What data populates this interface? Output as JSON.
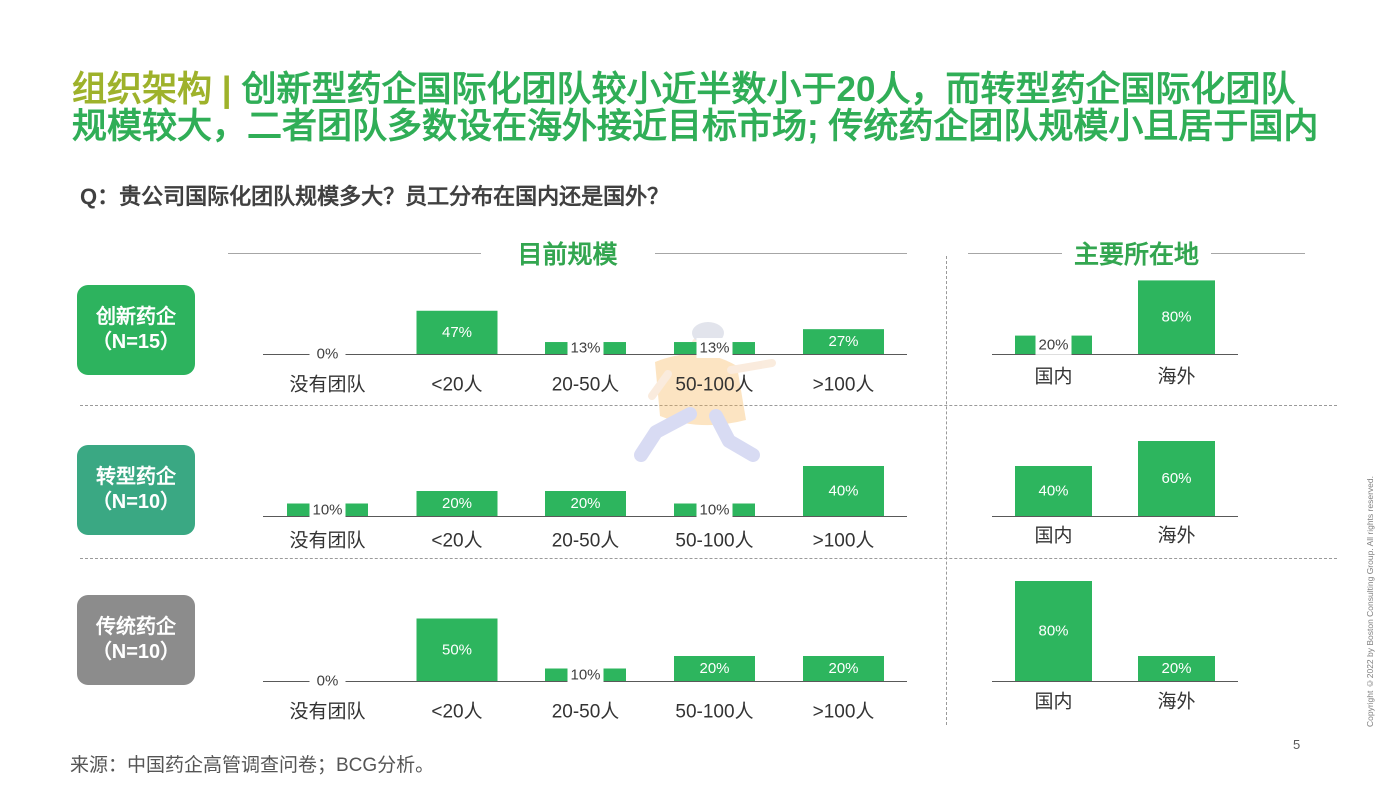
{
  "title": {
    "prefix": "组织架构 |",
    "line1": "创新型药企国际化团队较小近半数小于20人，而转型药企国际化团队",
    "line2": "规模较大，二者团队多数设在海外接近目标市场; 传统药企团队规模小且居于国内"
  },
  "question": "Q：贵公司国际化团队规模多大？员工分布在国内还是国外？",
  "headers": {
    "size": "目前规模",
    "location": "主要所在地"
  },
  "rows": [
    {
      "label": "创新药企",
      "n": "（N=15）",
      "color": "#2DB35E"
    },
    {
      "label": "转型药企",
      "n": "（N=10）",
      "color": "#3AA883"
    },
    {
      "label": "传统药企",
      "n": "（N=10）",
      "color": "#8C8C8C"
    }
  ],
  "chart_data": [
    {
      "type": "bar",
      "grid": false,
      "categories": [
        "没有团队",
        "<20人",
        "20-50人",
        "50-100人",
        ">100人"
      ],
      "values": [
        0,
        47,
        13,
        13,
        27
      ],
      "data_labels": [
        "0%",
        "47%",
        "13%",
        "13%",
        "27%"
      ]
    },
    {
      "type": "bar",
      "grid": false,
      "categories": [
        "国内",
        "海外"
      ],
      "values": [
        20,
        80
      ],
      "data_labels": [
        "20%",
        "80%"
      ]
    },
    {
      "type": "bar",
      "grid": false,
      "categories": [
        "没有团队",
        "<20人",
        "20-50人",
        "50-100人",
        ">100人"
      ],
      "values": [
        10,
        20,
        20,
        10,
        40
      ],
      "data_labels": [
        "10%",
        "20%",
        "20%",
        "10%",
        "40%"
      ]
    },
    {
      "type": "bar",
      "grid": false,
      "categories": [
        "国内",
        "海外"
      ],
      "values": [
        40,
        60
      ],
      "data_labels": [
        "40%",
        "60%"
      ]
    },
    {
      "type": "bar",
      "grid": false,
      "categories": [
        "没有团队",
        "<20人",
        "20-50人",
        "50-100人",
        ">100人"
      ],
      "values": [
        0,
        50,
        10,
        20,
        20
      ],
      "data_labels": [
        "0%",
        "50%",
        "10%",
        "20%",
        "20%"
      ]
    },
    {
      "type": "bar",
      "grid": false,
      "categories": [
        "国内",
        "海外"
      ],
      "values": [
        80,
        20
      ],
      "data_labels": [
        "80%",
        "20%"
      ]
    }
  ],
  "footer": {
    "source": "来源：中国药企高管调查问卷；BCG分析。",
    "page_number": "5",
    "copyright": "Copyright ©2022 by Boston Consulting Group. All rights reserved."
  },
  "colors": {
    "title": "#30AE57",
    "title_prefix": "#9EB22B",
    "header": "#33A650",
    "bar": "#2DB55E"
  }
}
